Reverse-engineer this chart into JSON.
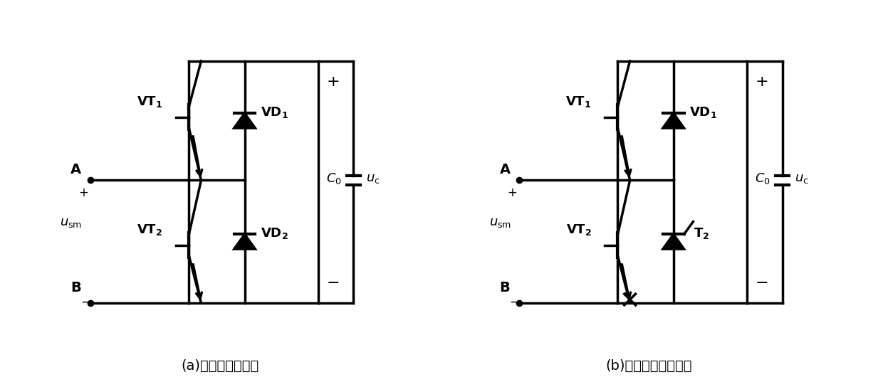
{
  "title_a": "(a)半桥子模块拓扑",
  "title_b": "(b)改进型子模块拓扑",
  "bg_color": "#ffffff",
  "line_color": "#000000",
  "lw": 2.5,
  "fig_width": 12.4,
  "fig_height": 5.3
}
